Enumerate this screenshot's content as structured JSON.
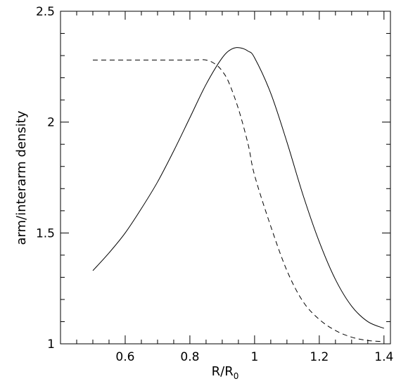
{
  "chart_data": {
    "type": "line",
    "title": "",
    "xlabel": "R/R",
    "xlabel_subscript": "0",
    "ylabel": "arm/interarm density",
    "xlim": [
      0.4,
      1.42
    ],
    "ylim": [
      1.0,
      2.5
    ],
    "x_ticks": [
      0.6,
      0.8,
      1.0,
      1.2,
      1.4
    ],
    "x_tick_labels": [
      "0.6",
      "0.8",
      "1",
      "1.2",
      "1.4"
    ],
    "y_ticks": [
      1.0,
      1.5,
      2.0,
      2.5
    ],
    "y_tick_labels": [
      "1",
      "1.5",
      "2",
      "2.5"
    ],
    "grid": false,
    "legend": "none",
    "series": [
      {
        "style": "solid",
        "color": "#000000",
        "x": [
          0.5,
          0.55,
          0.6,
          0.65,
          0.7,
          0.75,
          0.8,
          0.85,
          0.9,
          0.93,
          0.955,
          0.98,
          1.0,
          1.05,
          1.1,
          1.15,
          1.2,
          1.25,
          1.3,
          1.35,
          1.4
        ],
        "y": [
          1.33,
          1.41,
          1.5,
          1.61,
          1.73,
          1.87,
          2.02,
          2.17,
          2.29,
          2.33,
          2.335,
          2.32,
          2.29,
          2.13,
          1.91,
          1.67,
          1.46,
          1.29,
          1.17,
          1.1,
          1.07
        ]
      },
      {
        "style": "dashed",
        "color": "#000000",
        "x": [
          0.5,
          0.6,
          0.7,
          0.8,
          0.85,
          0.88,
          0.9,
          0.92,
          0.95,
          0.98,
          1.0,
          1.05,
          1.1,
          1.15,
          1.2,
          1.25,
          1.3,
          1.35,
          1.4
        ],
        "y": [
          2.28,
          2.28,
          2.28,
          2.28,
          2.28,
          2.26,
          2.23,
          2.18,
          2.06,
          1.9,
          1.76,
          1.53,
          1.33,
          1.19,
          1.11,
          1.06,
          1.03,
          1.015,
          1.01
        ]
      }
    ]
  }
}
